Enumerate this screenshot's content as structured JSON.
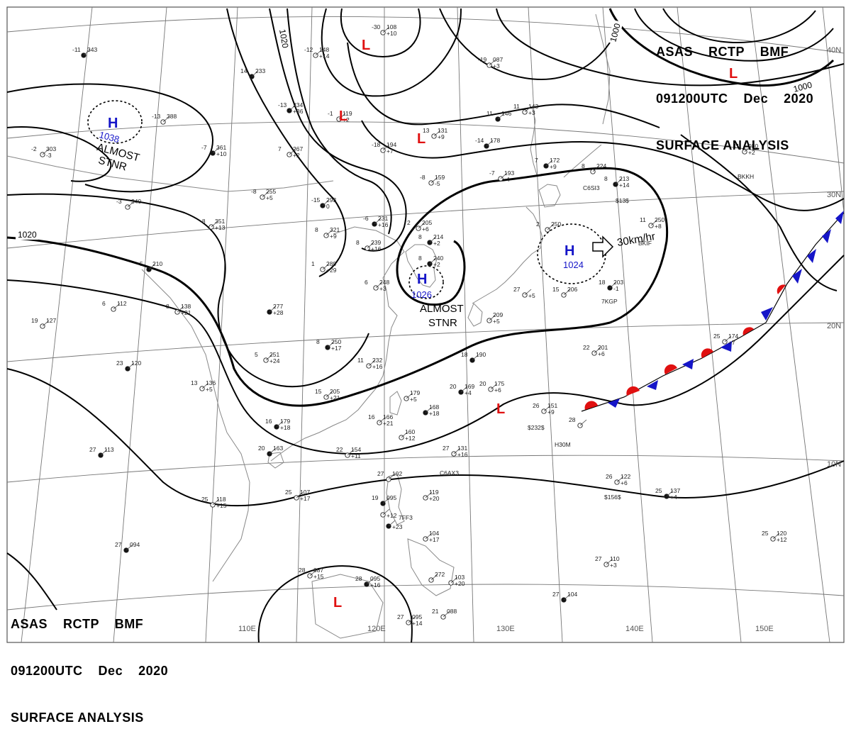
{
  "header": {
    "line1": "ASAS    RCTP    BMF",
    "line2": "091200UTC    Dec    2020",
    "line3": "SURFACE ANALYSIS"
  },
  "isobar_labels": [
    "1020",
    "1020",
    "1000",
    "1000"
  ],
  "lat_labels": [
    "40N",
    "30N",
    "20N",
    "10N"
  ],
  "lon_labels": [
    "110E",
    "120E",
    "130E",
    "140E",
    "150E"
  ],
  "pressure_centers": [
    {
      "type": "H",
      "value": "1038"
    },
    {
      "type": "H",
      "value": "1026"
    },
    {
      "type": "H",
      "value": "1024"
    },
    {
      "type": "L",
      "value": ""
    },
    {
      "type": "L",
      "value": ""
    },
    {
      "type": "L",
      "value": ""
    },
    {
      "type": "L",
      "value": ""
    },
    {
      "type": "L",
      "value": ""
    },
    {
      "type": "L",
      "value": ""
    }
  ],
  "annotations": {
    "almost_stnr_1_a": "ALMOST",
    "almost_stnr_1_b": "STNR",
    "almost_stnr_2_a": "ALMOST",
    "almost_stnr_2_b": "STNR",
    "motion": "30km/hr"
  },
  "stations": [
    {
      "t": "-11",
      "p": "343",
      "d": ""
    },
    {
      "t": "-30",
      "p": "108",
      "d": "+10"
    },
    {
      "t": "-12",
      "p": "148",
      "d": "+14"
    },
    {
      "t": "14",
      "p": "233",
      "d": ""
    },
    {
      "t": "-13",
      "p": "388",
      "d": ""
    },
    {
      "t": "-19",
      "p": "087",
      "d": "+3"
    },
    {
      "t": "-13",
      "p": "234",
      "d": "+36"
    },
    {
      "t": "-1",
      "p": "119",
      "d": "+2"
    },
    {
      "t": "13",
      "p": "131",
      "d": "+9"
    },
    {
      "t": "11",
      "p": "146",
      "d": ""
    },
    {
      "t": "11",
      "p": "143",
      "d": "+3"
    },
    {
      "t": "-2",
      "p": "303",
      "d": "-3"
    },
    {
      "t": "-7",
      "p": "361",
      "d": "+10"
    },
    {
      "t": "7",
      "p": "267",
      "d": "+2"
    },
    {
      "t": "-18",
      "p": "194",
      "d": "+7"
    },
    {
      "t": "-14",
      "p": "178",
      "d": ""
    },
    {
      "t": "11",
      "p": "080",
      "d": "+2"
    },
    {
      "t": "-8",
      "p": "255",
      "d": "+5"
    },
    {
      "t": "-15",
      "p": "293",
      "d": "0"
    },
    {
      "t": "-8",
      "p": "159",
      "d": "-5"
    },
    {
      "t": "-7",
      "p": "193",
      "d": "-4"
    },
    {
      "t": "7",
      "p": "172",
      "d": "+9"
    },
    {
      "t": "-3",
      "p": "340",
      "d": ""
    },
    {
      "t": "-8",
      "p": "351",
      "d": "+13"
    },
    {
      "t": "-6",
      "p": "231",
      "d": "+16"
    },
    {
      "t": "2",
      "p": "205",
      "d": "+6"
    },
    {
      "t": "8",
      "p": "224",
      "d": ""
    },
    {
      "t": "8",
      "p": "213",
      "d": "+14"
    },
    {
      "t": "8",
      "p": "321",
      "d": "+9"
    },
    {
      "t": "8",
      "p": "239",
      "d": "+16"
    },
    {
      "t": "8",
      "p": "214",
      "d": "+2"
    },
    {
      "t": "2",
      "p": "250",
      "d": ""
    },
    {
      "t": "11",
      "p": "250",
      "d": "+8"
    },
    {
      "t": "-5",
      "p": "210",
      "d": ""
    },
    {
      "t": "1",
      "p": "289",
      "d": "+29"
    },
    {
      "t": "6",
      "p": "248",
      "d": "+3"
    },
    {
      "t": "8",
      "p": "240",
      "d": "+2"
    },
    {
      "t": "27",
      "p": "",
      "d": "+5"
    },
    {
      "t": "15",
      "p": "206",
      "d": ""
    },
    {
      "t": "18",
      "p": "203",
      "d": "-1"
    },
    {
      "t": "6",
      "p": "112",
      "d": ""
    },
    {
      "t": "8",
      "p": "138",
      "d": "+21"
    },
    {
      "t": "",
      "p": "277",
      "d": "+28"
    },
    {
      "t": "",
      "p": "209",
      "d": "+5"
    },
    {
      "t": "19",
      "p": "127",
      "d": ""
    },
    {
      "t": "8",
      "p": "250",
      "d": "+17"
    },
    {
      "t": "5",
      "p": "251",
      "d": "+24"
    },
    {
      "t": "11",
      "p": "232",
      "d": "+16"
    },
    {
      "t": "18",
      "p": "190",
      "d": ""
    },
    {
      "t": "25",
      "p": "174",
      "d": "+7"
    },
    {
      "t": "22",
      "p": "201",
      "d": "+6"
    },
    {
      "t": "23",
      "p": "120",
      "d": ""
    },
    {
      "t": "13",
      "p": "136",
      "d": "+5"
    },
    {
      "t": "15",
      "p": "205",
      "d": "+21"
    },
    {
      "t": "20",
      "p": "169",
      "d": "+4"
    },
    {
      "t": "20",
      "p": "175",
      "d": "+6"
    },
    {
      "t": "",
      "p": "179",
      "d": "+5"
    },
    {
      "t": "",
      "p": "168",
      "d": "+18"
    },
    {
      "t": "26",
      "p": "151",
      "d": "+9"
    },
    {
      "t": "28",
      "p": "",
      "d": ""
    },
    {
      "t": "16",
      "p": "179",
      "d": "+18"
    },
    {
      "t": "16",
      "p": "166",
      "d": "+21"
    },
    {
      "t": "",
      "p": "160",
      "d": "+12"
    },
    {
      "t": "20",
      "p": "163",
      "d": ""
    },
    {
      "t": "22",
      "p": "154",
      "d": "+11"
    },
    {
      "t": "27",
      "p": "131",
      "d": "+16"
    },
    {
      "t": "27",
      "p": "113",
      "d": ""
    },
    {
      "t": "27",
      "p": "102",
      "d": ""
    },
    {
      "t": "26",
      "p": "122",
      "d": "+6"
    },
    {
      "t": "25",
      "p": "137",
      "d": "+4"
    },
    {
      "t": "25",
      "p": "118",
      "d": "+15"
    },
    {
      "t": "25",
      "p": "107",
      "d": "+17"
    },
    {
      "t": "19",
      "p": "095",
      "d": ""
    },
    {
      "t": "",
      "p": "119",
      "d": "+20"
    },
    {
      "t": "",
      "p": "",
      "d": "+12"
    },
    {
      "t": "",
      "p": "",
      "d": "+23"
    },
    {
      "t": "",
      "p": "104",
      "d": "+17"
    },
    {
      "t": "25",
      "p": "120",
      "d": "+12"
    },
    {
      "t": "27",
      "p": "094",
      "d": ""
    },
    {
      "t": "27",
      "p": "110",
      "d": "+3"
    },
    {
      "t": "28",
      "p": "087",
      "d": "+15"
    },
    {
      "t": "28",
      "p": "095",
      "d": "+16"
    },
    {
      "t": "",
      "p": "103",
      "d": "+20"
    },
    {
      "t": "",
      "p": "272",
      "d": ""
    },
    {
      "t": "27",
      "p": "104",
      "d": ""
    },
    {
      "t": "27",
      "p": "095",
      "d": "+14"
    },
    {
      "t": "21",
      "p": "088",
      "d": ""
    }
  ],
  "ship_ids": [
    "C6SI3",
    "$13$",
    "BKIF",
    "BKKH",
    "7KGP",
    "$232$",
    "H30M",
    "C6AX3",
    "7FF3",
    "$156$"
  ],
  "fronts": [
    {
      "type": "stationary",
      "label": ""
    }
  ],
  "colors": {
    "high": "#1515c8",
    "low": "#e01010",
    "front_warm": "#e01010",
    "front_cold": "#1515c8",
    "isobar": "#000000",
    "grid": "#777777",
    "coast": "#888888"
  }
}
